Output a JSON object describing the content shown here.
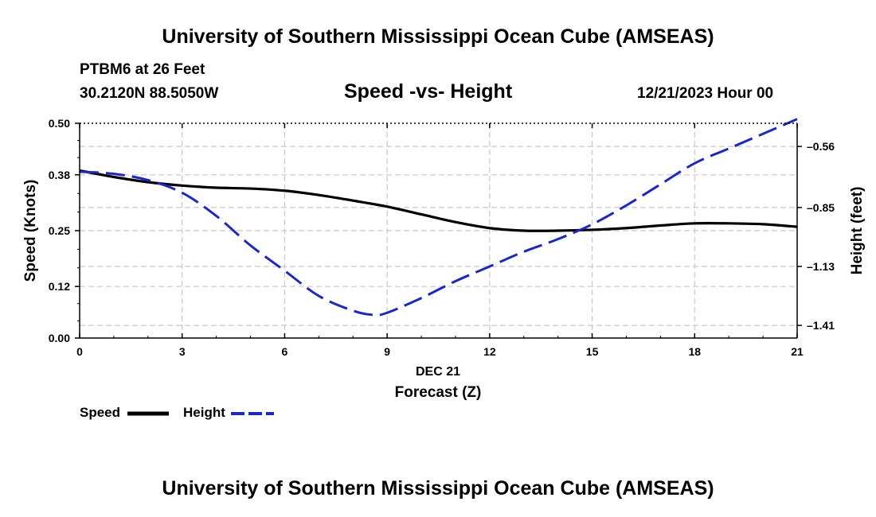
{
  "page": {
    "title_top": "University of Southern Mississippi Ocean Cube (AMSEAS)",
    "title_bottom": "University of Southern Mississippi Ocean Cube (AMSEAS)",
    "station": "PTBM6 at 26 Feet",
    "coords": "30.2120N  88.5050W",
    "subtitle": "Speed -vs- Height",
    "datetime": "12/21/2023 Hour 00"
  },
  "chart_data": {
    "type": "line",
    "title": "Speed -vs- Height",
    "xlabel": "Forecast (Z)",
    "xsublabel": "DEC 21",
    "ylabel": "Speed (Knots)",
    "y2label": "Height (feet)",
    "x_ticks": [
      0,
      3,
      6,
      9,
      12,
      15,
      18,
      21
    ],
    "xlim": [
      0,
      21
    ],
    "ylim": [
      0,
      0.5
    ],
    "y_ticks": [
      0.0,
      0.12,
      0.25,
      0.38,
      0.5
    ],
    "y_tick_labels": [
      "0.00",
      "0.12",
      "0.25",
      "0.38",
      "0.50"
    ],
    "y2lim": [
      -1.47,
      -0.45
    ],
    "y2_ticks": [
      -1.41,
      -1.13,
      -0.85,
      -0.56
    ],
    "y2_tick_labels": [
      "-1.41",
      "-1.13",
      "-0.85",
      "-0.56"
    ],
    "grid": true,
    "series": [
      {
        "name": "Speed",
        "axis": "left",
        "style": "solid",
        "color": "#000000",
        "x": [
          0,
          1,
          2,
          3,
          4,
          5,
          6,
          7,
          8,
          9,
          10,
          11,
          12,
          13,
          14,
          15,
          16,
          17,
          18,
          19,
          20,
          21
        ],
        "values": [
          0.39,
          0.375,
          0.363,
          0.355,
          0.35,
          0.348,
          0.343,
          0.333,
          0.32,
          0.306,
          0.288,
          0.27,
          0.256,
          0.25,
          0.25,
          0.252,
          0.256,
          0.262,
          0.267,
          0.267,
          0.265,
          0.259
        ]
      },
      {
        "name": "Height",
        "axis": "right",
        "style": "dashed",
        "color": "#1a28c8",
        "x": [
          0,
          1,
          2,
          3,
          4,
          5,
          6,
          7,
          8,
          8.6,
          9,
          10,
          11,
          12,
          13,
          14,
          15,
          16,
          17,
          18,
          19,
          20,
          21
        ],
        "values": [
          -0.68,
          -0.69,
          -0.72,
          -0.78,
          -0.89,
          -1.03,
          -1.15,
          -1.27,
          -1.34,
          -1.36,
          -1.35,
          -1.28,
          -1.2,
          -1.13,
          -1.06,
          -1.0,
          -0.93,
          -0.84,
          -0.74,
          -0.64,
          -0.57,
          -0.5,
          -0.43
        ]
      }
    ],
    "legend": [
      {
        "label": "Speed",
        "color": "#000000",
        "style": "solid"
      },
      {
        "label": "Height",
        "color": "#1a28c8",
        "style": "dashed"
      }
    ]
  }
}
